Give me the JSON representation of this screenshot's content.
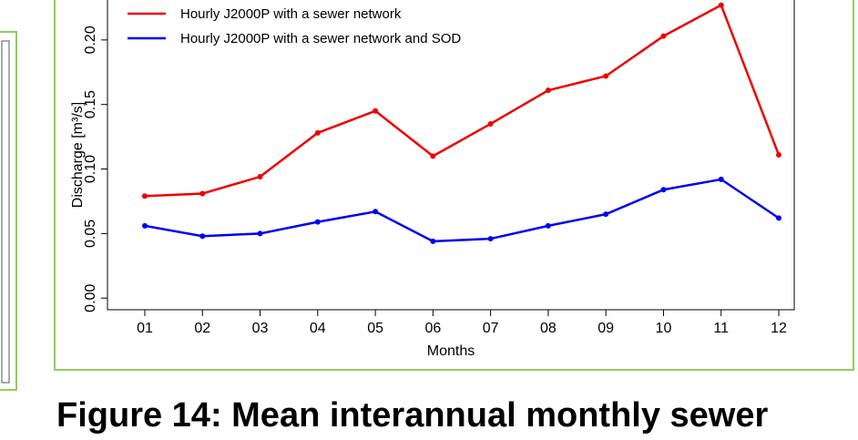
{
  "chart_data": {
    "type": "line",
    "xlabel": "Months",
    "ylabel": "Discharge [m³/s]",
    "categories": [
      "01",
      "02",
      "03",
      "04",
      "05",
      "06",
      "07",
      "08",
      "09",
      "10",
      "11",
      "12"
    ],
    "series": [
      {
        "name": "Hourly J2000P with a sewer network",
        "color": "#ee0000",
        "values": [
          0.079,
          0.081,
          0.094,
          0.128,
          0.145,
          0.11,
          0.135,
          0.161,
          0.172,
          0.203,
          0.227,
          0.111
        ]
      },
      {
        "name": "Hourly J2000P with a sewer network and SOD",
        "color": "#0000ee",
        "values": [
          0.056,
          0.048,
          0.05,
          0.059,
          0.067,
          0.044,
          0.046,
          0.056,
          0.065,
          0.084,
          0.092,
          0.062
        ]
      }
    ],
    "ylim": [
      -0.009,
      0.238
    ],
    "yticks": [
      {
        "value": 0,
        "label": "0.00"
      },
      {
        "value": 0.05,
        "label": "0.05"
      },
      {
        "value": 0.1,
        "label": "0.10"
      },
      {
        "value": 0.15,
        "label": "0.15"
      },
      {
        "value": 0.2,
        "label": "0.20"
      }
    ],
    "legend": "upper-left",
    "caption": "Figure 14: Mean interannual monthly sewer"
  }
}
